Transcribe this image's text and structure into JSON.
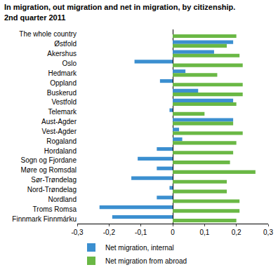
{
  "chart_data": {
    "type": "bar",
    "orientation": "horizontal",
    "title": "In migration, out migration and net in migration, by citizenship.\n2nd quarter 2011",
    "categories": [
      "The whole country",
      "Østfold",
      "Akershus",
      "Oslo",
      "Hedmark",
      "Oppland",
      "Buskerud",
      "Vestfold",
      "Telemark",
      "Aust-Agder",
      "Vest-Agder",
      "Rogaland",
      "Hordaland",
      "Sogn og Fjordane",
      "Møre og Romsdal",
      "Sør-Trøndelag",
      "Nord-Trøndelag",
      "Nordland",
      "Troms Romsa",
      "Finnmark Finnmárku"
    ],
    "series": [
      {
        "name": "Net migration, internal",
        "color": "#3b8fd0",
        "values": [
          0,
          0.19,
          0.13,
          -0.12,
          0.04,
          -0.04,
          0.08,
          0.19,
          -0.01,
          0.19,
          0.02,
          0.03,
          -0.05,
          -0.11,
          -0.05,
          -0.13,
          -0.01,
          -0.05,
          -0.23,
          -0.19
        ]
      },
      {
        "name": "Net migration from abroad",
        "color": "#6ab845",
        "values": [
          0.2,
          0.17,
          0.21,
          0.22,
          0.14,
          0.22,
          0.22,
          0.2,
          0.1,
          0.19,
          0.22,
          0.2,
          0.19,
          0.18,
          0.26,
          0.17,
          0.17,
          0.21,
          0.21,
          0.2
        ]
      }
    ],
    "xlim": [
      -0.3,
      0.3
    ],
    "xticks": [
      {
        "value": -0.3,
        "label": "-0,3"
      },
      {
        "value": -0.2,
        "label": "-0,2"
      },
      {
        "value": -0.1,
        "label": "-0,1"
      },
      0,
      {
        "value": 0.1,
        "label": "0,1"
      },
      {
        "value": 0.2,
        "label": "0,2"
      },
      {
        "value": 0.3,
        "label": "0,3"
      }
    ],
    "grid": false,
    "legend": "bottom"
  }
}
